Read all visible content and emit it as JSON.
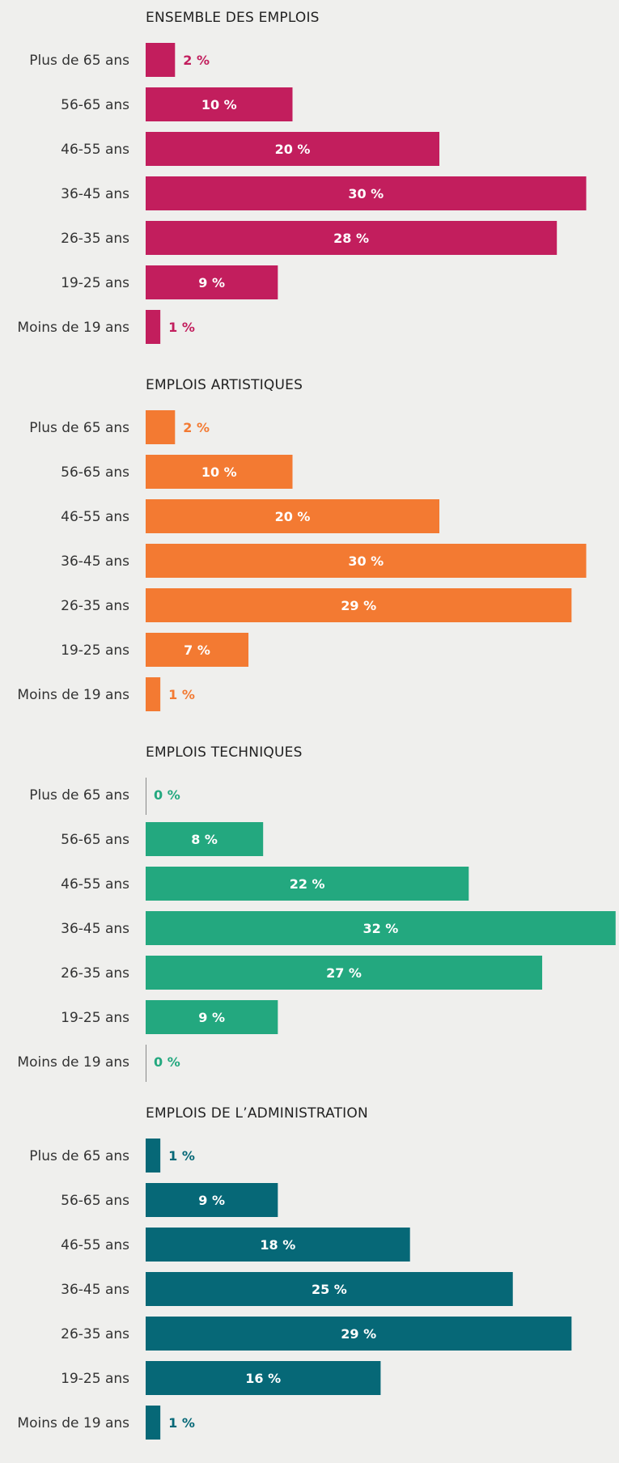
{
  "chart_data": [
    {
      "type": "bar",
      "orientation": "horizontal",
      "title": "ENSEMBLE DES EMPLOIS",
      "color": "#c21e5d",
      "categories": [
        "Plus de 65 ans",
        "56-65 ans",
        "46-55 ans",
        "36-45 ans",
        "26-35 ans",
        "19-25 ans",
        "Moins de 19 ans"
      ],
      "values": [
        2,
        10,
        20,
        30,
        28,
        9,
        1
      ],
      "value_labels": [
        "2 %",
        "10 %",
        "20 %",
        "30 %",
        "28 %",
        "9 %",
        "1 %"
      ],
      "unit": "%"
    },
    {
      "type": "bar",
      "orientation": "horizontal",
      "title": "EMPLOIS ARTISTIQUES",
      "color": "#f37a32",
      "categories": [
        "Plus de 65 ans",
        "56-65 ans",
        "46-55 ans",
        "36-45 ans",
        "26-35 ans",
        "19-25 ans",
        "Moins de 19 ans"
      ],
      "values": [
        2,
        10,
        20,
        30,
        29,
        7,
        1
      ],
      "value_labels": [
        "2 %",
        "10 %",
        "20 %",
        "30 %",
        "29 %",
        "7 %",
        "1 %"
      ],
      "unit": "%"
    },
    {
      "type": "bar",
      "orientation": "horizontal",
      "title": "EMPLOIS TECHNIQUES",
      "color": "#23a87f",
      "categories": [
        "Plus de 65 ans",
        "56-65 ans",
        "46-55 ans",
        "36-45 ans",
        "26-35 ans",
        "19-25 ans",
        "Moins de 19 ans"
      ],
      "values": [
        0,
        8,
        22,
        32,
        27,
        9,
        0
      ],
      "value_labels": [
        "0 %",
        "8 %",
        "22 %",
        "32 %",
        "27 %",
        "9 %",
        "0 %"
      ],
      "unit": "%"
    },
    {
      "type": "bar",
      "orientation": "horizontal",
      "title": "EMPLOIS DE L’ADMINISTRATION",
      "color": "#066877",
      "categories": [
        "Plus de 65 ans",
        "56-65 ans",
        "46-55 ans",
        "36-45 ans",
        "26-35 ans",
        "19-25 ans",
        "Moins de 19 ans"
      ],
      "values": [
        1,
        9,
        18,
        25,
        29,
        16,
        1
      ],
      "value_labels": [
        "1 %",
        "9 %",
        "18 %",
        "25 %",
        "29 %",
        "16 %",
        "1 %"
      ],
      "unit": "%"
    }
  ]
}
